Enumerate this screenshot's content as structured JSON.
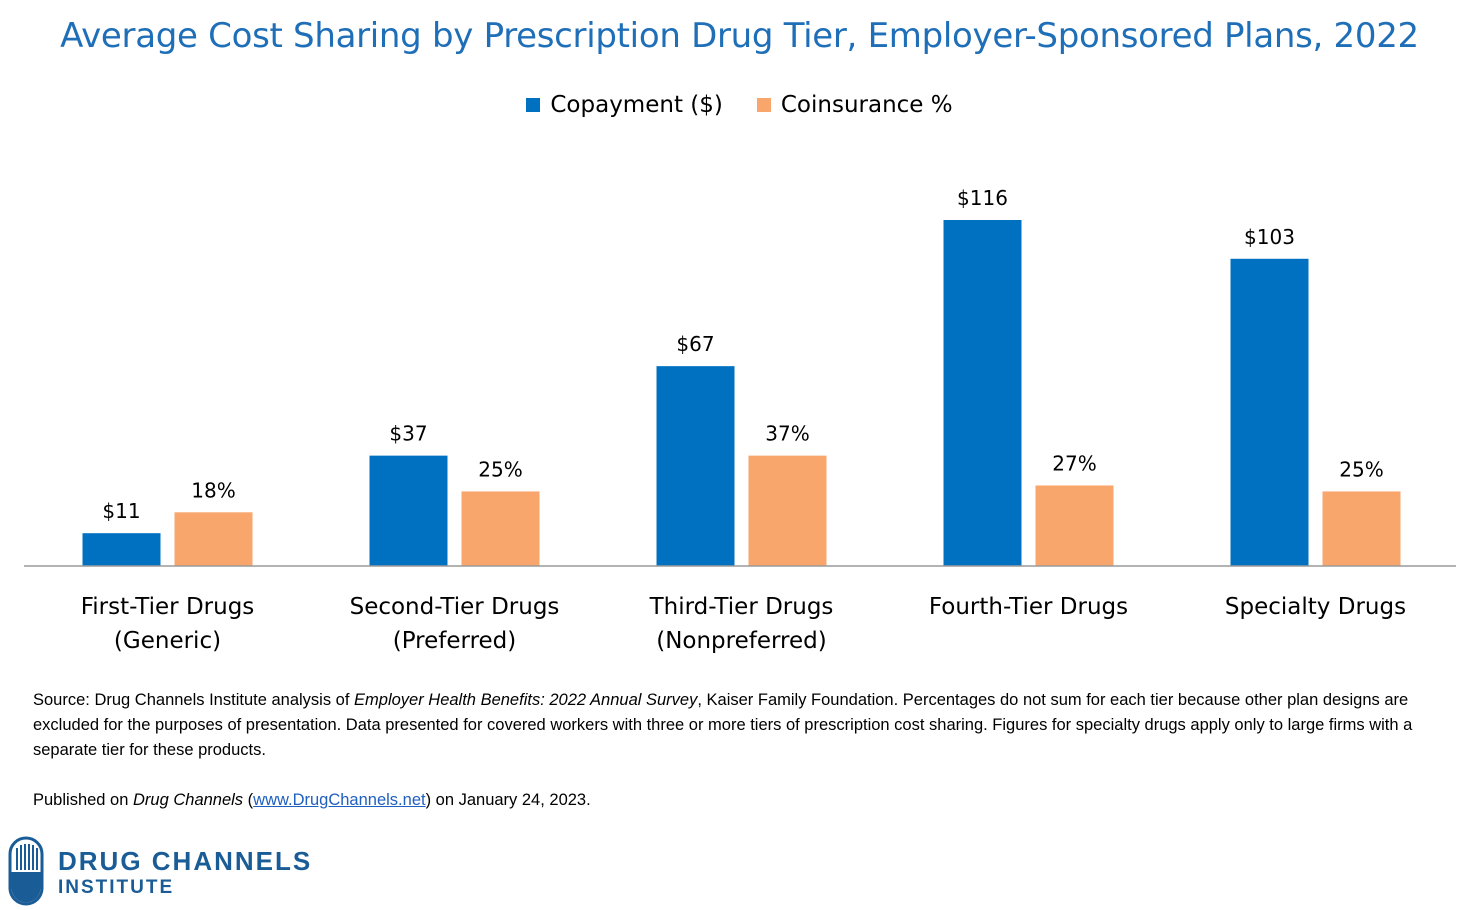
{
  "chart_data": {
    "type": "bar",
    "title": "Average Cost Sharing by Prescription Drug Tier, Employer-Sponsored Plans, 2022",
    "categories": [
      [
        "First-Tier Drugs",
        "(Generic)"
      ],
      [
        "Second-Tier Drugs",
        "(Preferred)"
      ],
      [
        "Third-Tier Drugs",
        "(Nonpreferred)"
      ],
      [
        "Fourth-Tier Drugs"
      ],
      [
        "Specialty Drugs"
      ]
    ],
    "series": [
      {
        "name": "Copayment ($)",
        "color": "#0070c0",
        "values": [
          11,
          37,
          67,
          116,
          103
        ],
        "labels": [
          "$11",
          "$37",
          "$67",
          "$116",
          "$103"
        ]
      },
      {
        "name": "Coinsurance %",
        "color": "#f9a66c",
        "values": [
          18,
          25,
          37,
          27,
          25
        ],
        "labels": [
          "18%",
          "25%",
          "37%",
          "27%",
          "25%"
        ]
      }
    ],
    "legend_position": "top-center",
    "grid": false
  },
  "footer": {
    "source_prefix": "Source: Drug Channels Institute analysis of ",
    "source_title": "Employer Health Benefits: 2022 Annual Survey",
    "source_suffix": ", Kaiser Family Foundation. Percentages do not sum for each tier because other plan designs are excluded for the purposes of presentation. Data presented for covered workers with three or more tiers of prescription cost sharing. Figures for specialty drugs apply only to large firms with a separate tier for these products.",
    "published_prefix": "Published on ",
    "published_site": "Drug Channels",
    "published_open": " (",
    "published_link": "www.DrugChannels.net",
    "published_suffix": ") on January 24, 2023."
  },
  "logo": {
    "line1": "DRUG CHANNELS",
    "line2": "INSTITUTE",
    "icon": "capsule-logo-icon"
  }
}
